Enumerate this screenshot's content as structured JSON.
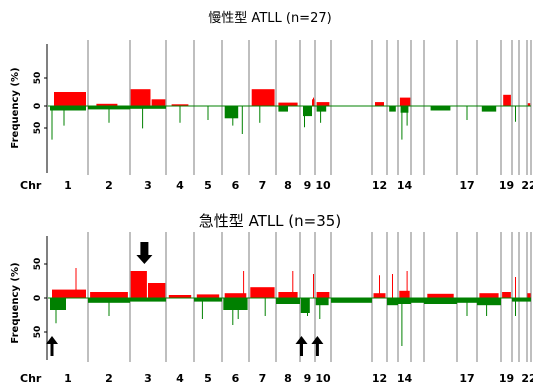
{
  "colors": {
    "gain": "#ff0000",
    "loss": "#008000",
    "divider": "#7f7f7f",
    "arrow": "#000000"
  },
  "chart_data": [
    {
      "type": "bar",
      "title": "慢性型 ATLL (n=27)",
      "ylabel": "Frequency (%)",
      "xlabel": "Chr",
      "yticks": [
        "50",
        "0",
        "50"
      ],
      "ytick_values": [
        50,
        0,
        -50
      ],
      "ylim": [
        -80,
        80
      ],
      "chromosomes": [
        "1",
        "2",
        "3",
        "4",
        "5",
        "6",
        "7",
        "8",
        "9",
        "10",
        "11",
        "12",
        "13",
        "14",
        "15",
        "16",
        "17",
        "18",
        "19",
        "20",
        "21",
        "22"
      ],
      "chromosome_labels": [
        "1",
        "2",
        "3",
        "4",
        "5",
        "6",
        "7",
        "8",
        "9",
        "10",
        "",
        "12",
        "",
        "14",
        "",
        "",
        "17",
        "",
        "19",
        "",
        "",
        "22"
      ],
      "gain_segments": [
        {
          "chr": "1",
          "pos": 0.15,
          "len": 0.8,
          "value": 25
        },
        {
          "chr": "2",
          "pos": 0.2,
          "len": 0.5,
          "value": 4
        },
        {
          "chr": "3",
          "pos": 0.02,
          "len": 0.55,
          "value": 30
        },
        {
          "chr": "3",
          "pos": 0.6,
          "len": 0.38,
          "value": 12
        },
        {
          "chr": "4",
          "pos": 0.2,
          "len": 0.6,
          "value": 3
        },
        {
          "chr": "7",
          "pos": 0.1,
          "len": 0.85,
          "value": 30
        },
        {
          "chr": "8",
          "pos": 0.1,
          "len": 0.8,
          "value": 6
        },
        {
          "chr": "9",
          "pos": 0.8,
          "len": 0.15,
          "value": 12
        },
        {
          "chr": "10",
          "pos": 0.1,
          "len": 0.8,
          "value": 7
        },
        {
          "chr": "12",
          "pos": 0.2,
          "len": 0.6,
          "value": 7
        },
        {
          "chr": "14",
          "pos": 0.15,
          "len": 0.8,
          "value": 15
        },
        {
          "chr": "19",
          "pos": 0.2,
          "len": 0.7,
          "value": 20
        },
        {
          "chr": "22",
          "pos": 0.2,
          "len": 0.6,
          "value": 5
        }
      ],
      "loss_segments": [
        {
          "chr": "1",
          "pos": 0.05,
          "len": 0.9,
          "value": 8
        },
        {
          "chr": "2",
          "pos": 0.0,
          "len": 1.0,
          "value": 6
        },
        {
          "chr": "3",
          "pos": 0.0,
          "len": 1.0,
          "value": 5
        },
        {
          "chr": "6",
          "pos": 0.1,
          "len": 0.5,
          "value": 22
        },
        {
          "chr": "8",
          "pos": 0.1,
          "len": 0.4,
          "value": 10
        },
        {
          "chr": "9",
          "pos": 0.2,
          "len": 0.6,
          "value": 18
        },
        {
          "chr": "10",
          "pos": 0.1,
          "len": 0.6,
          "value": 10
        },
        {
          "chr": "13",
          "pos": 0.2,
          "len": 0.6,
          "value": 10
        },
        {
          "chr": "14",
          "pos": 0.2,
          "len": 0.6,
          "value": 12
        },
        {
          "chr": "16",
          "pos": 0.2,
          "len": 0.6,
          "value": 8
        },
        {
          "chr": "18",
          "pos": 0.2,
          "len": 0.6,
          "value": 10
        }
      ],
      "spikes": [
        {
          "chr": "1",
          "pos": 0.1,
          "value": -60
        },
        {
          "chr": "1",
          "pos": 0.4,
          "value": -35
        },
        {
          "chr": "2",
          "pos": 0.5,
          "value": -30
        },
        {
          "chr": "3",
          "pos": 0.35,
          "value": -40
        },
        {
          "chr": "4",
          "pos": 0.5,
          "value": -30
        },
        {
          "chr": "5",
          "pos": 0.5,
          "value": -25
        },
        {
          "chr": "6",
          "pos": 0.4,
          "value": -35
        },
        {
          "chr": "6",
          "pos": 0.75,
          "value": -50
        },
        {
          "chr": "7",
          "pos": 0.4,
          "value": -30
        },
        {
          "chr": "9",
          "pos": 0.3,
          "value": -38
        },
        {
          "chr": "10",
          "pos": 0.35,
          "value": -30
        },
        {
          "chr": "14",
          "pos": 0.3,
          "value": -60
        },
        {
          "chr": "14",
          "pos": 0.7,
          "value": -35
        },
        {
          "chr": "17",
          "pos": 0.5,
          "value": -25
        },
        {
          "chr": "20",
          "pos": 0.5,
          "value": -28
        },
        {
          "chr": "9",
          "pos": 0.9,
          "value": 15
        }
      ],
      "arrows_down": [],
      "arrows_up": []
    },
    {
      "type": "bar",
      "title": "急性型 ATLL (n=35)",
      "ylabel": "Frequency (%)",
      "xlabel": "Chr",
      "yticks": [
        "50",
        "0",
        "50"
      ],
      "ytick_values": [
        50,
        0,
        -50
      ],
      "ylim": [
        -80,
        80
      ],
      "chromosomes": [
        "1",
        "2",
        "3",
        "4",
        "5",
        "6",
        "7",
        "8",
        "9",
        "10",
        "11",
        "12",
        "13",
        "14",
        "15",
        "16",
        "17",
        "18",
        "19",
        "20",
        "21",
        "22"
      ],
      "chromosome_labels": [
        "1",
        "2",
        "3",
        "4",
        "5",
        "6",
        "7",
        "8",
        "9",
        "10",
        "",
        "12",
        "",
        "14",
        "",
        "",
        "17",
        "",
        "19",
        "",
        "",
        "22"
      ],
      "gain_segments": [
        {
          "chr": "1",
          "pos": 0.1,
          "len": 0.85,
          "value": 14
        },
        {
          "chr": "2",
          "pos": 0.05,
          "len": 0.9,
          "value": 10
        },
        {
          "chr": "3",
          "pos": 0.02,
          "len": 0.45,
          "value": 45
        },
        {
          "chr": "3",
          "pos": 0.5,
          "len": 0.48,
          "value": 25
        },
        {
          "chr": "4",
          "pos": 0.1,
          "len": 0.8,
          "value": 5
        },
        {
          "chr": "5",
          "pos": 0.1,
          "len": 0.8,
          "value": 6
        },
        {
          "chr": "6",
          "pos": 0.1,
          "len": 0.8,
          "value": 8
        },
        {
          "chr": "7",
          "pos": 0.05,
          "len": 0.9,
          "value": 18
        },
        {
          "chr": "8",
          "pos": 0.1,
          "len": 0.8,
          "value": 10
        },
        {
          "chr": "10",
          "pos": 0.1,
          "len": 0.8,
          "value": 10
        },
        {
          "chr": "12",
          "pos": 0.1,
          "len": 0.8,
          "value": 8
        },
        {
          "chr": "14",
          "pos": 0.1,
          "len": 0.8,
          "value": 12
        },
        {
          "chr": "16",
          "pos": 0.1,
          "len": 0.8,
          "value": 7
        },
        {
          "chr": "18",
          "pos": 0.1,
          "len": 0.8,
          "value": 8
        },
        {
          "chr": "19",
          "pos": 0.1,
          "len": 0.8,
          "value": 10
        },
        {
          "chr": "22",
          "pos": 0.1,
          "len": 0.8,
          "value": 8
        }
      ],
      "loss_segments": [
        {
          "chr": "1",
          "pos": 0.05,
          "len": 0.4,
          "value": 20
        },
        {
          "chr": "2",
          "pos": 0.0,
          "len": 1.0,
          "value": 8
        },
        {
          "chr": "3",
          "pos": 0.0,
          "len": 1.0,
          "value": 6
        },
        {
          "chr": "5",
          "pos": 0.0,
          "len": 1.0,
          "value": 6
        },
        {
          "chr": "6",
          "pos": 0.05,
          "len": 0.9,
          "value": 20
        },
        {
          "chr": "8",
          "pos": 0.0,
          "len": 1.0,
          "value": 10
        },
        {
          "chr": "9",
          "pos": 0.05,
          "len": 0.6,
          "value": 25
        },
        {
          "chr": "10",
          "pos": 0.05,
          "len": 0.8,
          "value": 12
        },
        {
          "chr": "11",
          "pos": 0.0,
          "len": 1.0,
          "value": 8
        },
        {
          "chr": "13",
          "pos": 0.0,
          "len": 1.0,
          "value": 12
        },
        {
          "chr": "14",
          "pos": 0.0,
          "len": 1.0,
          "value": 10
        },
        {
          "chr": "15",
          "pos": 0.0,
          "len": 1.0,
          "value": 8
        },
        {
          "chr": "16",
          "pos": 0.0,
          "len": 1.0,
          "value": 10
        },
        {
          "chr": "17",
          "pos": 0.0,
          "len": 1.0,
          "value": 8
        },
        {
          "chr": "18",
          "pos": 0.0,
          "len": 1.0,
          "value": 12
        },
        {
          "chr": "20",
          "pos": 0.0,
          "len": 1.0,
          "value": 6
        },
        {
          "chr": "21",
          "pos": 0.0,
          "len": 1.0,
          "value": 6
        },
        {
          "chr": "22",
          "pos": 0.0,
          "len": 1.0,
          "value": 6
        }
      ],
      "spikes": [
        {
          "chr": "1",
          "pos": 0.2,
          "value": -42
        },
        {
          "chr": "1",
          "pos": 0.7,
          "value": 50
        },
        {
          "chr": "2",
          "pos": 0.5,
          "value": -30
        },
        {
          "chr": "5",
          "pos": 0.3,
          "value": -35
        },
        {
          "chr": "6",
          "pos": 0.4,
          "value": -45
        },
        {
          "chr": "6",
          "pos": 0.6,
          "value": -35
        },
        {
          "chr": "6",
          "pos": 0.8,
          "value": 45
        },
        {
          "chr": "7",
          "pos": 0.6,
          "value": -30
        },
        {
          "chr": "8",
          "pos": 0.7,
          "value": 45
        },
        {
          "chr": "9",
          "pos": 0.5,
          "value": -30
        },
        {
          "chr": "9",
          "pos": 0.9,
          "value": 40
        },
        {
          "chr": "10",
          "pos": 0.3,
          "value": -35
        },
        {
          "chr": "12",
          "pos": 0.5,
          "value": 38
        },
        {
          "chr": "13",
          "pos": 0.5,
          "value": 40
        },
        {
          "chr": "14",
          "pos": 0.3,
          "value": -80
        },
        {
          "chr": "14",
          "pos": 0.7,
          "value": 45
        },
        {
          "chr": "17",
          "pos": 0.5,
          "value": -30
        },
        {
          "chr": "18",
          "pos": 0.4,
          "value": -30
        },
        {
          "chr": "20",
          "pos": 0.5,
          "value": -30
        },
        {
          "chr": "20",
          "pos": 0.5,
          "value": 35
        }
      ],
      "arrows_down": [
        {
          "chr": "3",
          "pos": 0.4
        }
      ],
      "arrows_up": [
        {
          "chr": "1",
          "pos": 0.1
        },
        {
          "chr": "9",
          "pos": 0.1
        },
        {
          "chr": "10",
          "pos": 0.15
        }
      ]
    }
  ]
}
